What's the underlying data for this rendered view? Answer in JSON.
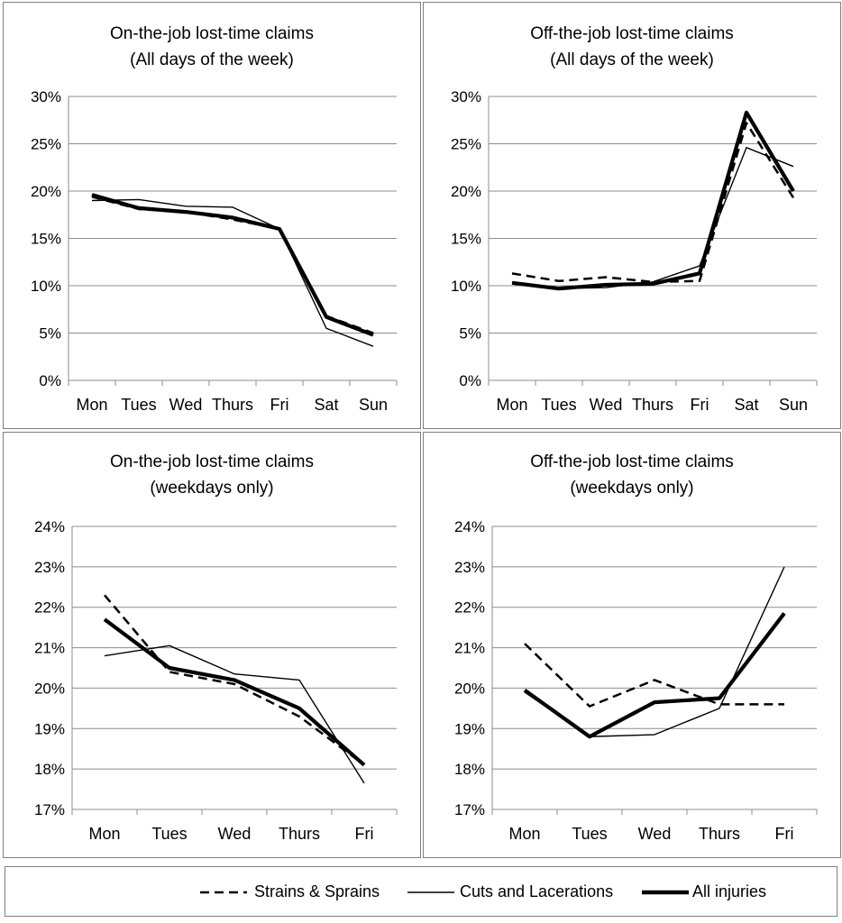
{
  "chart_data": [
    {
      "type": "line",
      "title_line1": "On-the-job lost-time claims",
      "title_line2": "(All days of the week)",
      "categories": [
        "Mon",
        "Tues",
        "Wed",
        "Thurs",
        "Fri",
        "Sat",
        "Sun"
      ],
      "ylim": [
        0,
        30
      ],
      "ytick_values": [
        0,
        5,
        10,
        15,
        20,
        25,
        30
      ],
      "yticks": [
        "0%",
        "5%",
        "10%",
        "15%",
        "20%",
        "25%",
        "30%"
      ],
      "series": [
        {
          "name": "Strains & Sprains",
          "style": "dashed",
          "values": [
            19.4,
            18.1,
            17.8,
            17.0,
            16.0,
            6.8,
            5.0
          ]
        },
        {
          "name": "Cuts and Lacerations",
          "style": "thin",
          "values": [
            19.0,
            19.1,
            18.4,
            18.3,
            16.0,
            5.5,
            3.6
          ]
        },
        {
          "name": "All injuries",
          "style": "thick",
          "values": [
            19.6,
            18.2,
            17.8,
            17.2,
            16.0,
            6.7,
            4.8
          ]
        }
      ]
    },
    {
      "type": "line",
      "title_line1": "Off-the-job lost-time claims",
      "title_line2": "(All days of the week)",
      "categories": [
        "Mon",
        "Tues",
        "Wed",
        "Thurs",
        "Fri",
        "Sat",
        "Sun"
      ],
      "ylim": [
        0,
        30
      ],
      "ytick_values": [
        0,
        5,
        10,
        15,
        20,
        25,
        30
      ],
      "yticks": [
        "0%",
        "5%",
        "10%",
        "15%",
        "20%",
        "25%",
        "30%"
      ],
      "series": [
        {
          "name": "Strains & Sprains",
          "style": "dashed",
          "values": [
            11.3,
            10.5,
            10.9,
            10.4,
            10.5,
            27.2,
            19.3
          ]
        },
        {
          "name": "Cuts and Lacerations",
          "style": "thin",
          "values": [
            10.3,
            9.7,
            9.8,
            10.4,
            12.1,
            24.6,
            22.6
          ]
        },
        {
          "name": "All injuries",
          "style": "thick",
          "values": [
            10.3,
            9.7,
            10.1,
            10.2,
            11.3,
            28.3,
            20.0
          ]
        }
      ]
    },
    {
      "type": "line",
      "title_line1": "On-the-job lost-time claims",
      "title_line2": "(weekdays only)",
      "categories": [
        "Mon",
        "Tues",
        "Wed",
        "Thurs",
        "Fri"
      ],
      "ylim": [
        17,
        24
      ],
      "ytick_values": [
        17,
        18,
        19,
        20,
        21,
        22,
        23,
        24
      ],
      "yticks": [
        "17%",
        "18%",
        "19%",
        "20%",
        "21%",
        "22%",
        "23%",
        "24%"
      ],
      "series": [
        {
          "name": "Strains & Sprains",
          "style": "dashed",
          "values": [
            22.3,
            20.4,
            20.1,
            19.3,
            18.1
          ]
        },
        {
          "name": "Cuts and Lacerations",
          "style": "thin",
          "values": [
            20.8,
            21.05,
            20.35,
            20.2,
            17.65
          ]
        },
        {
          "name": "All injuries",
          "style": "thick",
          "values": [
            21.7,
            20.5,
            20.2,
            19.5,
            18.1
          ]
        }
      ]
    },
    {
      "type": "line",
      "title_line1": "Off-the-job lost-time claims",
      "title_line2": "(weekdays only)",
      "categories": [
        "Mon",
        "Tues",
        "Wed",
        "Thurs",
        "Fri"
      ],
      "ylim": [
        17,
        24
      ],
      "ytick_values": [
        17,
        18,
        19,
        20,
        21,
        22,
        23,
        24
      ],
      "yticks": [
        "17%",
        "18%",
        "19%",
        "20%",
        "21%",
        "22%",
        "23%",
        "24%"
      ],
      "series": [
        {
          "name": "Strains & Sprains",
          "style": "dashed",
          "values": [
            21.1,
            19.55,
            20.2,
            19.6,
            19.6
          ]
        },
        {
          "name": "Cuts and Lacerations",
          "style": "thin",
          "values": [
            19.9,
            18.8,
            18.85,
            19.5,
            23.0
          ]
        },
        {
          "name": "All injuries",
          "style": "thick",
          "values": [
            19.95,
            18.8,
            19.65,
            19.75,
            21.85
          ]
        }
      ]
    }
  ],
  "legend": {
    "items": [
      {
        "label": "Strains & Sprains",
        "style": "dashed"
      },
      {
        "label": "Cuts and Lacerations",
        "style": "thin"
      },
      {
        "label": "All injuries",
        "style": "thick"
      }
    ]
  },
  "colors": {
    "line": "#000000",
    "grid": "#8c8c8c",
    "axis": "#8c8c8c",
    "border": "#7f7f7f"
  }
}
